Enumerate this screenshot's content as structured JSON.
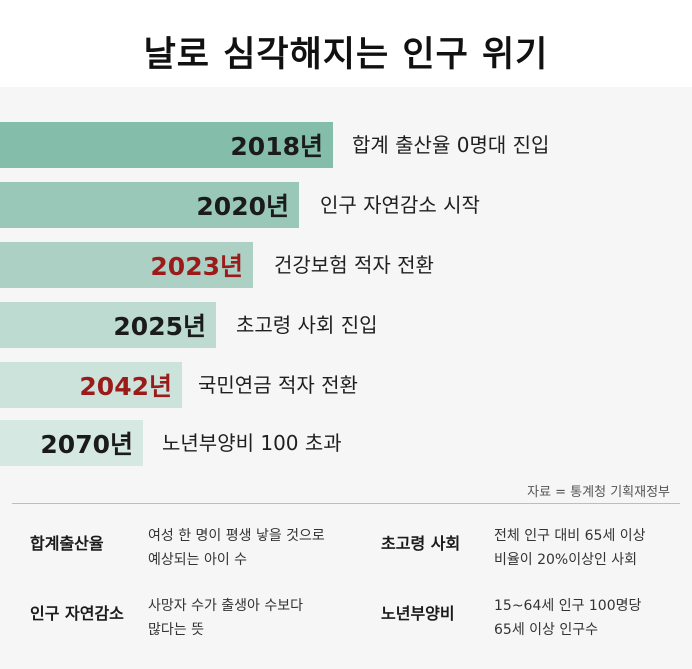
{
  "title": "날로 심각해지는 인구 위기",
  "timeline": [
    {
      "year": "2018년",
      "event": "합계 출산율 0명대 진입",
      "color": "#84bda9",
      "highlight": false
    },
    {
      "year": "2020년",
      "event": "인구 자연감소 시작",
      "color": "#9ac8b8",
      "highlight": false
    },
    {
      "year": "2023년",
      "event": "건강보험 적자 전환",
      "color": "#acd1c4",
      "highlight": true
    },
    {
      "year": "2025년",
      "event": "초고령 사회 진입",
      "color": "#bddbd0",
      "highlight": false
    },
    {
      "year": "2042년",
      "event": "국민연금 적자 전환",
      "color": "#cbe3da",
      "highlight": true
    },
    {
      "year": "2070년",
      "event": "노년부양비 100 초과",
      "color": "#d6e8e2",
      "highlight": false
    }
  ],
  "source": "자료 = 통계청 기획재정부",
  "glossary": [
    {
      "term": "합계출산율",
      "line1": "여성 한 명이 평생 낳을 것으로",
      "line2": "예상되는 아이 수"
    },
    {
      "term": "초고령 사회",
      "line1": "전체 인구 대비 65세 이상",
      "line2": "비율이 20%이상인 사회"
    },
    {
      "term": "인구 자연감소",
      "line1": "사망자 수가 출생아 수보다",
      "line2": "많다는 뜻"
    },
    {
      "term": "노년부양비",
      "line1": "15~64세 인구 100명당",
      "line2": "65세 이상 인구수"
    }
  ]
}
